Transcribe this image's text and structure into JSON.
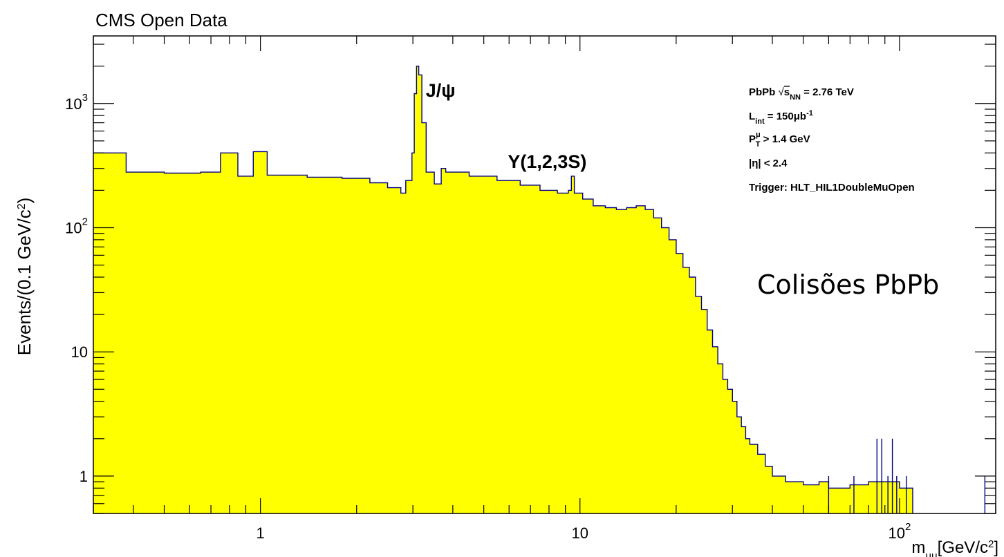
{
  "chart_data": {
    "type": "area",
    "title": "CMS Open Data",
    "ylabel_base": "Events/(0.1 GeV/c",
    "ylabel_sup": "2",
    "ylabel_close": ")",
    "xlabel_base": "m",
    "xlabel_sub": "μμ",
    "xlabel_unit": "[GeV/c",
    "xlabel_sup": "2",
    "xlabel_close": "]",
    "x_scale": "log",
    "y_scale": "log",
    "xlim": [
      0.3,
      200
    ],
    "ylim": [
      0.5,
      3500
    ],
    "grid": false,
    "fill_color": "#ffff00",
    "line_color": "#000080",
    "x_ticks": [
      {
        "value": 1,
        "base": "1",
        "exp": ""
      },
      {
        "value": 10,
        "base": "10",
        "exp": ""
      },
      {
        "value": 100,
        "base": "10",
        "exp": "2"
      }
    ],
    "y_ticks": [
      {
        "value": 1,
        "base": "1",
        "exp": ""
      },
      {
        "value": 10,
        "base": "10",
        "exp": ""
      },
      {
        "value": 100,
        "base": "10",
        "exp": "2"
      },
      {
        "value": 1000,
        "base": "10",
        "exp": "3"
      }
    ],
    "annotations": [
      {
        "id": "jpsi",
        "text": "J/ψ",
        "x": 3.1
      },
      {
        "id": "upsilon",
        "text": "Υ(1,2,3S)",
        "x": 9.4
      }
    ],
    "info_box": {
      "line1_a": "PbPb  ",
      "line1_b": "s",
      "line1_sub": "NN",
      "line1_c": " = 2.76 TeV",
      "line2_a": "L",
      "line2_sub": "int",
      "line2_b": " = 150μb",
      "line2_sup": "-1",
      "line3_a": "P",
      "line3_sup": "μ",
      "line3_sub": "T",
      "line3_b": " > 1.4 GeV",
      "line4": "|η| < 2.4",
      "line5": "Trigger: HLT_HIL1DoubleMuOpen"
    },
    "overlay_text": "Colisões PbPb",
    "series": [
      {
        "values": [
          [
            0.3,
            400
          ],
          [
            0.38,
            400
          ],
          [
            0.38,
            280
          ],
          [
            0.5,
            275
          ],
          [
            0.65,
            280
          ],
          [
            0.75,
            400
          ],
          [
            0.85,
            260
          ],
          [
            0.95,
            410
          ],
          [
            1.05,
            265
          ],
          [
            1.4,
            255
          ],
          [
            1.8,
            250
          ],
          [
            2.2,
            230
          ],
          [
            2.5,
            210
          ],
          [
            2.75,
            190
          ],
          [
            2.85,
            240
          ],
          [
            2.98,
            400
          ],
          [
            3.03,
            1200
          ],
          [
            3.08,
            2000
          ],
          [
            3.13,
            1700
          ],
          [
            3.2,
            700
          ],
          [
            3.3,
            280
          ],
          [
            3.5,
            225
          ],
          [
            3.68,
            300
          ],
          [
            3.8,
            280
          ],
          [
            4.5,
            260
          ],
          [
            5.5,
            240
          ],
          [
            6.5,
            220
          ],
          [
            7.5,
            200
          ],
          [
            8.5,
            190
          ],
          [
            9.2,
            200
          ],
          [
            9.4,
            260
          ],
          [
            9.6,
            190
          ],
          [
            10.2,
            170
          ],
          [
            11,
            150
          ],
          [
            12,
            145
          ],
          [
            13,
            140
          ],
          [
            14,
            145
          ],
          [
            15,
            150
          ],
          [
            16,
            140
          ],
          [
            17,
            120
          ],
          [
            18,
            100
          ],
          [
            19,
            80
          ],
          [
            20,
            62
          ],
          [
            21,
            48
          ],
          [
            22,
            40
          ],
          [
            23,
            28
          ],
          [
            24,
            22
          ],
          [
            25,
            15
          ],
          [
            26,
            11
          ],
          [
            27,
            8
          ],
          [
            28,
            6
          ],
          [
            29,
            5
          ],
          [
            30,
            4
          ],
          [
            31,
            3
          ],
          [
            32,
            2.5
          ],
          [
            33,
            2
          ],
          [
            34,
            1.8
          ],
          [
            36,
            1.5
          ],
          [
            38,
            1.2
          ],
          [
            40,
            1
          ],
          [
            44,
            0.9
          ],
          [
            50,
            0.85
          ],
          [
            56,
            0.9
          ],
          [
            60,
            0.8
          ],
          [
            70,
            0.85
          ],
          [
            80,
            0.9
          ],
          [
            90,
            0.9
          ],
          [
            100,
            0.8
          ],
          [
            110,
            0.5
          ]
        ]
      }
    ],
    "spikes": [
      [
        60,
        1
      ],
      [
        72,
        1
      ],
      [
        85,
        2
      ],
      [
        88,
        2
      ],
      [
        92,
        1
      ],
      [
        95,
        2
      ],
      [
        98,
        1
      ],
      [
        105,
        1
      ],
      [
        185,
        1
      ]
    ]
  }
}
